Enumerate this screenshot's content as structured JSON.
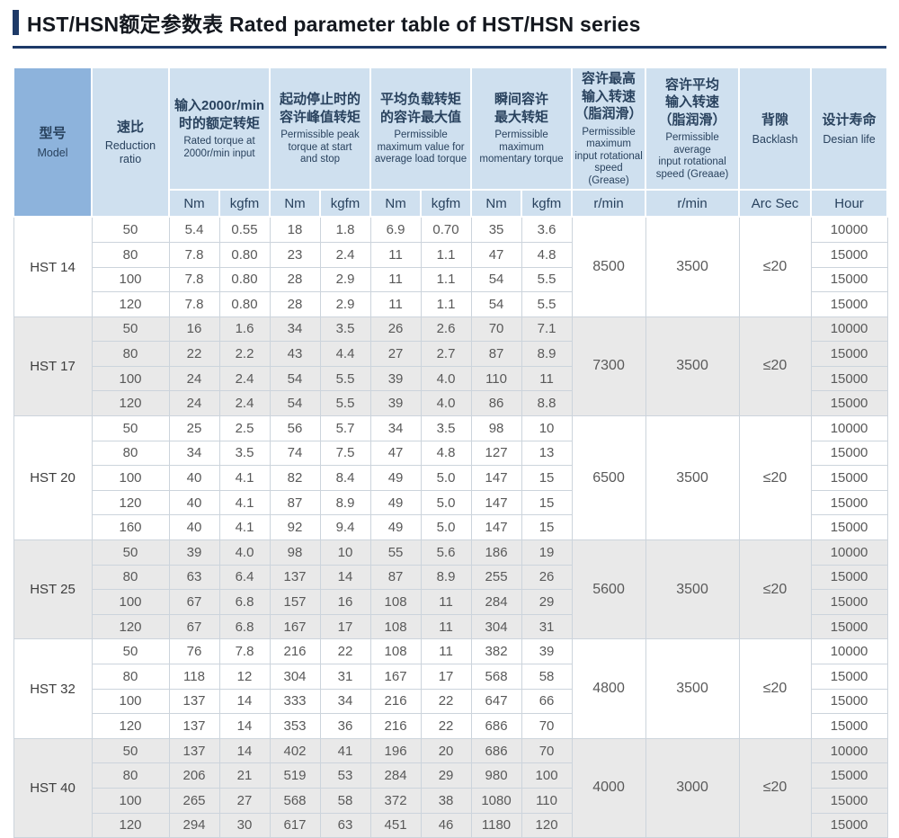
{
  "page": {
    "title": "HST/HSN额定参数表 Rated parameter table of HST/HSN series"
  },
  "colors": {
    "accent_dark_blue": "#1e3a68",
    "header_model_bg": "#8db3dc",
    "header_bg": "#cfe0ef",
    "header_text": "#29425e",
    "band_gray": "#e9e9e9",
    "band_white": "#ffffff",
    "body_border": "#ccd4dc",
    "data_text": "#595959"
  },
  "table": {
    "header": {
      "model": {
        "zh": "型号",
        "en": "Model"
      },
      "ratio": {
        "zh": "速比",
        "en": "Reduction\nratio"
      },
      "groups": [
        {
          "zh": "输入2000r/min\n时的额定转矩",
          "en": "Rated torque at\n2000r/min input"
        },
        {
          "zh": "起动停止时的\n容许峰值转矩",
          "en": "Permissible peak\ntorque at start\nand stop"
        },
        {
          "zh": "平均负载转矩\n的容许最大值",
          "en": "Permissible\nmaximum value for\naverage load torque"
        },
        {
          "zh": "瞬间容许\n最大转矩",
          "en": "Permissible\nmaximum\nmomentary torque"
        }
      ],
      "speed_max": {
        "zh": "容许最高\n输入转速\n（脂润滑）",
        "en": "Permissible\nmaximum\ninput rotational\nspeed (Grease)"
      },
      "speed_avg": {
        "zh": "容许平均\n输入转速\n（脂润滑）",
        "en": "Permissible\naverage\ninput rotational\nspeed (Greaae)"
      },
      "backlash": {
        "zh": "背隙",
        "en": "Backlash"
      },
      "life": {
        "zh": "设计寿命",
        "en": "Desian life"
      },
      "units": [
        "Nm",
        "kgfm",
        "Nm",
        "kgfm",
        "Nm",
        "kgfm",
        "Nm",
        "kgfm",
        "r/min",
        "r/min",
        "Arc Sec",
        "Hour"
      ]
    },
    "groups": [
      {
        "model": "HST 14",
        "speed_max": "8500",
        "speed_avg": "3500",
        "backlash": "≤20",
        "rows": [
          {
            "ratio": "50",
            "values": [
              "5.4",
              "0.55",
              "18",
              "1.8",
              "6.9",
              "0.70",
              "35",
              "3.6"
            ],
            "life": "10000"
          },
          {
            "ratio": "80",
            "values": [
              "7.8",
              "0.80",
              "23",
              "2.4",
              "11",
              "1.1",
              "47",
              "4.8"
            ],
            "life": "15000"
          },
          {
            "ratio": "100",
            "values": [
              "7.8",
              "0.80",
              "28",
              "2.9",
              "11",
              "1.1",
              "54",
              "5.5"
            ],
            "life": "15000"
          },
          {
            "ratio": "120",
            "values": [
              "7.8",
              "0.80",
              "28",
              "2.9",
              "11",
              "1.1",
              "54",
              "5.5"
            ],
            "life": "15000"
          }
        ]
      },
      {
        "model": "HST 17",
        "speed_max": "7300",
        "speed_avg": "3500",
        "backlash": "≤20",
        "rows": [
          {
            "ratio": "50",
            "values": [
              "16",
              "1.6",
              "34",
              "3.5",
              "26",
              "2.6",
              "70",
              "7.1"
            ],
            "life": "10000"
          },
          {
            "ratio": "80",
            "values": [
              "22",
              "2.2",
              "43",
              "4.4",
              "27",
              "2.7",
              "87",
              "8.9"
            ],
            "life": "15000"
          },
          {
            "ratio": "100",
            "values": [
              "24",
              "2.4",
              "54",
              "5.5",
              "39",
              "4.0",
              "110",
              "11"
            ],
            "life": "15000"
          },
          {
            "ratio": "120",
            "values": [
              "24",
              "2.4",
              "54",
              "5.5",
              "39",
              "4.0",
              "86",
              "8.8"
            ],
            "life": "15000"
          }
        ]
      },
      {
        "model": "HST 20",
        "speed_max": "6500",
        "speed_avg": "3500",
        "backlash": "≤20",
        "rows": [
          {
            "ratio": "50",
            "values": [
              "25",
              "2.5",
              "56",
              "5.7",
              "34",
              "3.5",
              "98",
              "10"
            ],
            "life": "10000"
          },
          {
            "ratio": "80",
            "values": [
              "34",
              "3.5",
              "74",
              "7.5",
              "47",
              "4.8",
              "127",
              "13"
            ],
            "life": "15000"
          },
          {
            "ratio": "100",
            "values": [
              "40",
              "4.1",
              "82",
              "8.4",
              "49",
              "5.0",
              "147",
              "15"
            ],
            "life": "15000"
          },
          {
            "ratio": "120",
            "values": [
              "40",
              "4.1",
              "87",
              "8.9",
              "49",
              "5.0",
              "147",
              "15"
            ],
            "life": "15000"
          },
          {
            "ratio": "160",
            "values": [
              "40",
              "4.1",
              "92",
              "9.4",
              "49",
              "5.0",
              "147",
              "15"
            ],
            "life": "15000"
          }
        ]
      },
      {
        "model": "HST 25",
        "speed_max": "5600",
        "speed_avg": "3500",
        "backlash": "≤20",
        "rows": [
          {
            "ratio": "50",
            "values": [
              "39",
              "4.0",
              "98",
              "10",
              "55",
              "5.6",
              "186",
              "19"
            ],
            "life": "10000"
          },
          {
            "ratio": "80",
            "values": [
              "63",
              "6.4",
              "137",
              "14",
              "87",
              "8.9",
              "255",
              "26"
            ],
            "life": "15000"
          },
          {
            "ratio": "100",
            "values": [
              "67",
              "6.8",
              "157",
              "16",
              "108",
              "11",
              "284",
              "29"
            ],
            "life": "15000"
          },
          {
            "ratio": "120",
            "values": [
              "67",
              "6.8",
              "167",
              "17",
              "108",
              "11",
              "304",
              "31"
            ],
            "life": "15000"
          }
        ]
      },
      {
        "model": "HST 32",
        "speed_max": "4800",
        "speed_avg": "3500",
        "backlash": "≤20",
        "rows": [
          {
            "ratio": "50",
            "values": [
              "76",
              "7.8",
              "216",
              "22",
              "108",
              "11",
              "382",
              "39"
            ],
            "life": "10000"
          },
          {
            "ratio": "80",
            "values": [
              "118",
              "12",
              "304",
              "31",
              "167",
              "17",
              "568",
              "58"
            ],
            "life": "15000"
          },
          {
            "ratio": "100",
            "values": [
              "137",
              "14",
              "333",
              "34",
              "216",
              "22",
              "647",
              "66"
            ],
            "life": "15000"
          },
          {
            "ratio": "120",
            "values": [
              "137",
              "14",
              "353",
              "36",
              "216",
              "22",
              "686",
              "70"
            ],
            "life": "15000"
          }
        ]
      },
      {
        "model": "HST 40",
        "speed_max": "4000",
        "speed_avg": "3000",
        "backlash": "≤20",
        "rows": [
          {
            "ratio": "50",
            "values": [
              "137",
              "14",
              "402",
              "41",
              "196",
              "20",
              "686",
              "70"
            ],
            "life": "10000"
          },
          {
            "ratio": "80",
            "values": [
              "206",
              "21",
              "519",
              "53",
              "284",
              "29",
              "980",
              "100"
            ],
            "life": "15000"
          },
          {
            "ratio": "100",
            "values": [
              "265",
              "27",
              "568",
              "58",
              "372",
              "38",
              "1080",
              "110"
            ],
            "life": "15000"
          },
          {
            "ratio": "120",
            "values": [
              "294",
              "30",
              "617",
              "63",
              "451",
              "46",
              "1180",
              "120"
            ],
            "life": "15000"
          }
        ]
      }
    ]
  }
}
